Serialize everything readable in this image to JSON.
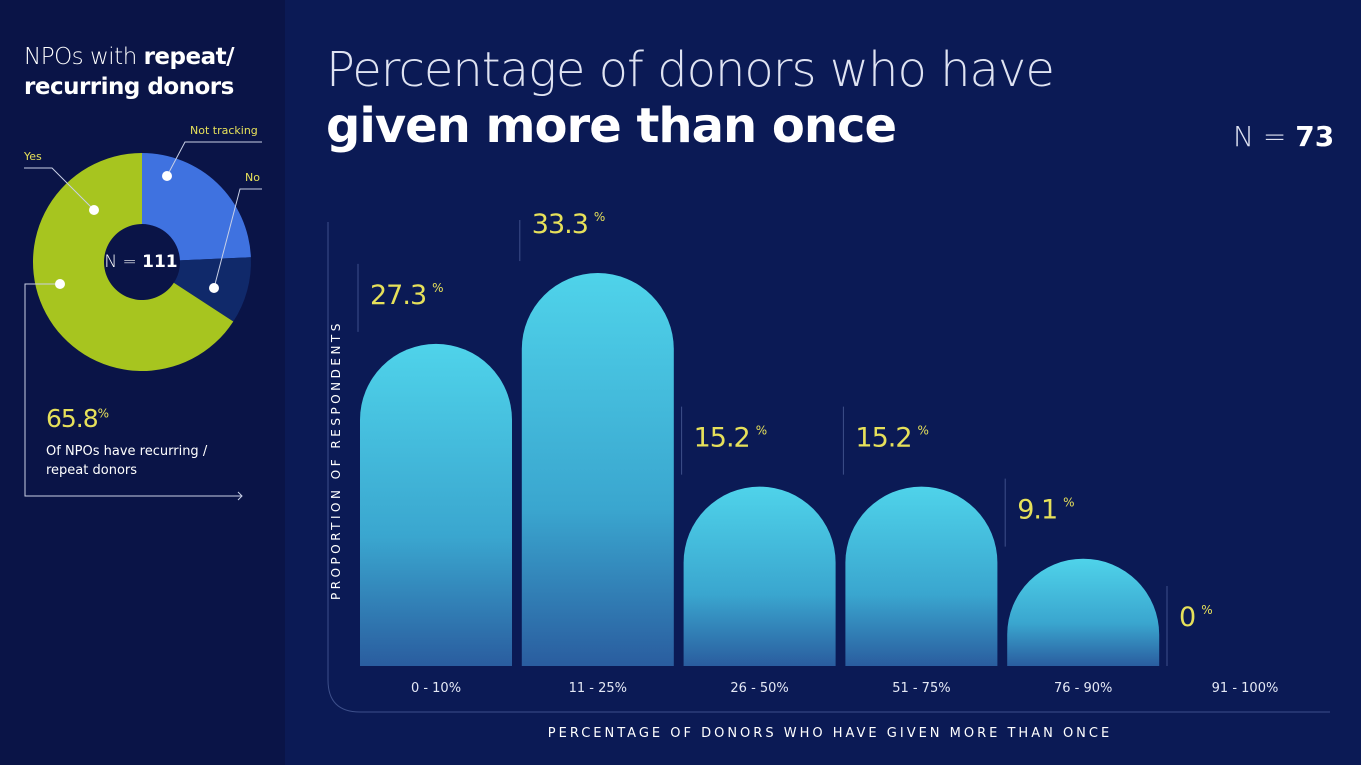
{
  "side": {
    "title_light": "NPOs with ",
    "title_bold": "repeat/ recurring donors",
    "donut": {
      "center_label": "N = ",
      "center_value": "111",
      "slices": [
        {
          "label": "Yes",
          "value": 65.8,
          "color": "#a7c51f"
        },
        {
          "label": "Not tracking",
          "value": 24.3,
          "color": "#3f72e0"
        },
        {
          "label": "No",
          "value": 9.9,
          "color": "#10296a"
        }
      ]
    },
    "highlight_value": "65.8",
    "highlight_unit": "%",
    "highlight_text": "Of NPOs have recurring / repeat donors"
  },
  "chart_data": {
    "type": "bar",
    "title_light": "Percentage of donors who have",
    "title_bold": "given more than once",
    "n_label": "N = ",
    "n_value": "73",
    "xlabel": "PERCENTAGE OF DONORS WHO HAVE GIVEN MORE THAN ONCE",
    "ylabel": "PROPORTION OF RESPONDENTS",
    "categories": [
      "0 - 10%",
      "11 - 25%",
      "26 - 50%",
      "51 - 75%",
      "76 - 90%",
      "91 - 100%"
    ],
    "values": [
      27.3,
      33.3,
      15.2,
      15.2,
      9.1,
      0
    ],
    "unit": "%",
    "bar_color": "#45c7e2",
    "label_color": "#e6e05a"
  }
}
